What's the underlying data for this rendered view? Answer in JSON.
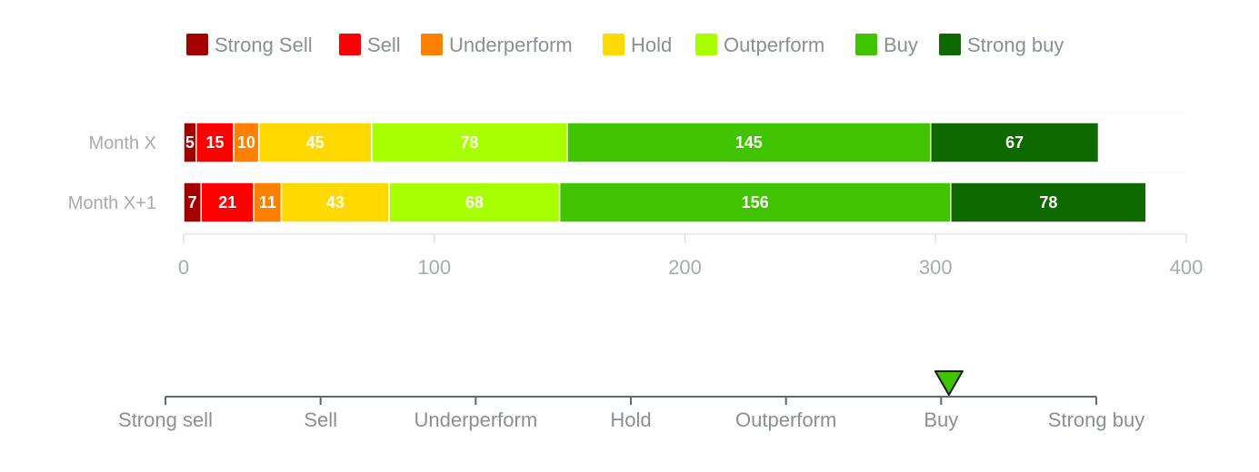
{
  "chart_data": [
    {
      "type": "bar",
      "orientation": "horizontal",
      "stacked": true,
      "categories": [
        "Month X",
        "Month X+1"
      ],
      "series": [
        {
          "name": "Strong Sell",
          "color": "#a40000",
          "values": [
            5,
            7
          ]
        },
        {
          "name": "Sell",
          "color": "#ff0000",
          "values": [
            15,
            21
          ]
        },
        {
          "name": "Underperform",
          "color": "#ff7f00",
          "values": [
            10,
            11
          ]
        },
        {
          "name": "Hold",
          "color": "#ffd900",
          "values": [
            45,
            43
          ]
        },
        {
          "name": "Outperform",
          "color": "#a8ff00",
          "values": [
            78,
            68
          ]
        },
        {
          "name": "Buy",
          "color": "#40c400",
          "values": [
            145,
            156
          ]
        },
        {
          "name": "Strong buy",
          "color": "#0e6a00",
          "values": [
            67,
            78
          ]
        }
      ],
      "xlim": [
        0,
        400
      ],
      "xticks": [
        0,
        100,
        200,
        300,
        400
      ],
      "data_labels": true,
      "legend_position": "top-center",
      "grid": false
    },
    {
      "type": "gauge",
      "scale_labels": [
        "Strong sell",
        "Sell",
        "Underperform",
        "Hold",
        "Outperform",
        "Buy",
        "Strong buy"
      ],
      "marker_value": 5.05,
      "marker_color": "#40c400"
    }
  ]
}
